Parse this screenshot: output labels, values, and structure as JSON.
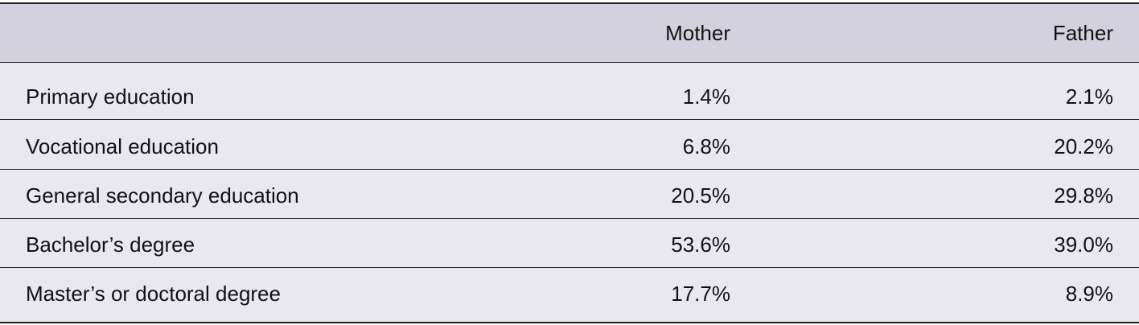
{
  "table": {
    "header": [
      "",
      "Mother",
      "Father"
    ],
    "rows": [
      [
        "Primary education",
        "1.4%",
        "2.1%"
      ],
      [
        "Vocational education",
        "6.8%",
        "20.2%"
      ],
      [
        "General secondary education",
        "20.5%",
        "29.8%"
      ],
      [
        "Bachelor’s degree",
        "53.6%",
        "39.0%"
      ],
      [
        "Master’s or doctoral degree",
        "17.7%",
        "8.9%"
      ]
    ]
  }
}
